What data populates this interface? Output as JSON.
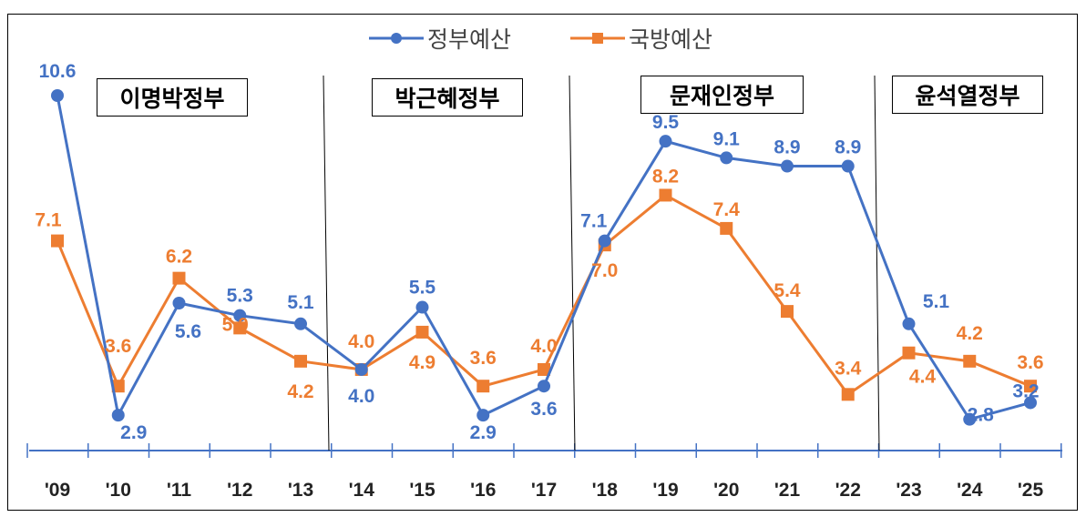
{
  "chart_data": {
    "type": "line",
    "categories": [
      "'09",
      "'10",
      "'11",
      "'12",
      "'13",
      "'14",
      "'15",
      "'16",
      "'17",
      "'18",
      "'19",
      "'20",
      "'21",
      "'22",
      "'23",
      "'24",
      "'25"
    ],
    "series": [
      {
        "name": "정부예산",
        "color": "#4472C4",
        "marker": "circle",
        "values": [
          10.6,
          2.9,
          5.6,
          5.3,
          5.1,
          4.0,
          5.5,
          2.9,
          3.6,
          7.1,
          9.5,
          9.1,
          8.9,
          8.9,
          5.1,
          2.8,
          3.2
        ]
      },
      {
        "name": "국방예산",
        "color": "#ED7D31",
        "marker": "square",
        "values": [
          7.1,
          3.6,
          6.2,
          5.0,
          4.2,
          4.0,
          4.9,
          3.6,
          4.0,
          7.0,
          8.2,
          7.4,
          5.4,
          3.4,
          4.4,
          4.2,
          3.6
        ]
      }
    ],
    "periods": [
      {
        "label": "이명박정부",
        "from": "'09",
        "to": "'13"
      },
      {
        "label": "박근혜정부",
        "from": "'14",
        "to": "'17"
      },
      {
        "label": "문재인정부",
        "from": "'18",
        "to": "'22"
      },
      {
        "label": "윤석열정부",
        "from": "'23",
        "to": "'25"
      }
    ],
    "legend": "top-center",
    "grid": false,
    "yaxis_visible": false
  }
}
